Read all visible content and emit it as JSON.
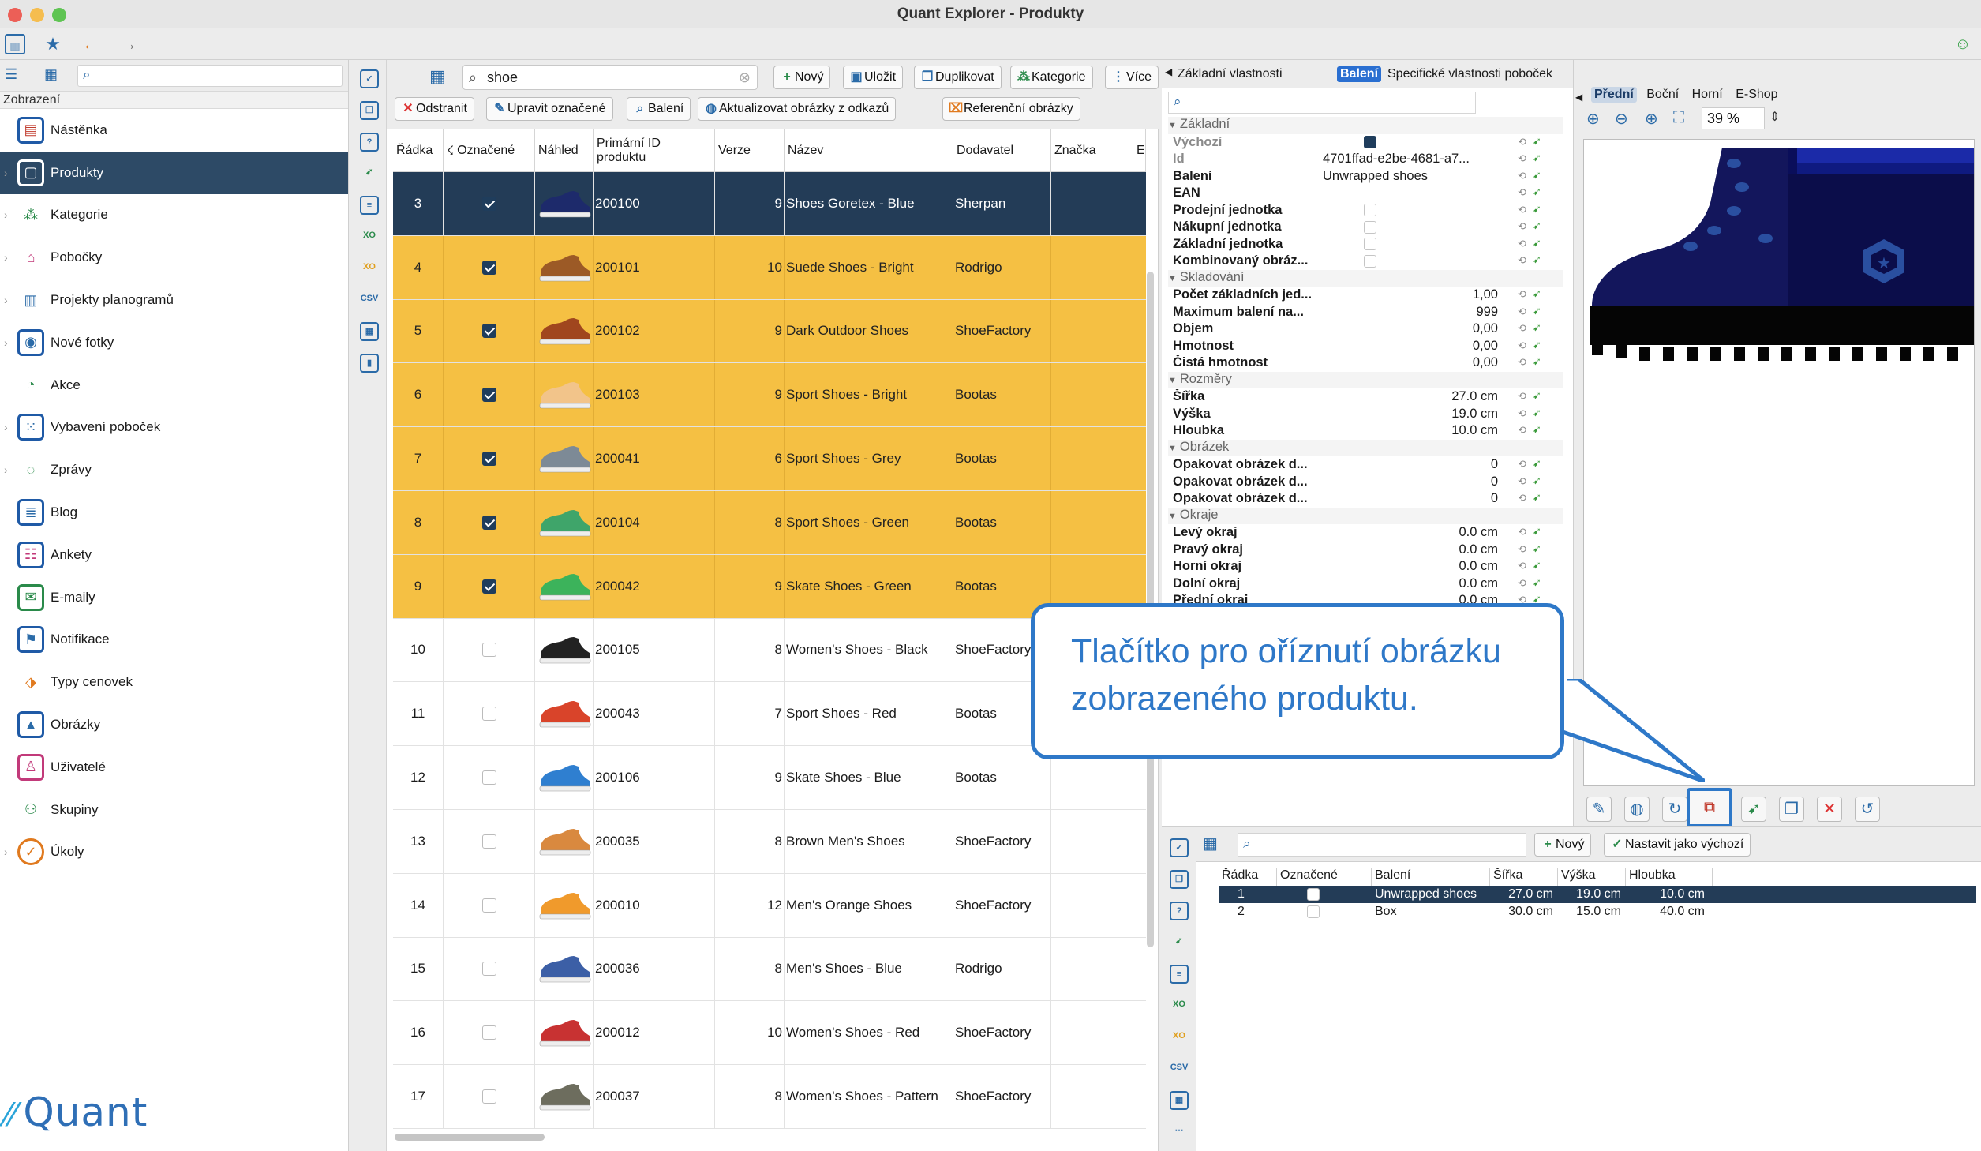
{
  "window": {
    "title": "Quant Explorer - Produkty"
  },
  "nav": {
    "section": "Zobrazení",
    "items": [
      {
        "label": "Nástěnka",
        "icon": "dashboard-icon"
      },
      {
        "label": "Produkty",
        "icon": "product-icon",
        "active": true
      },
      {
        "label": "Kategorie",
        "icon": "category-icon"
      },
      {
        "label": "Pobočky",
        "icon": "store-icon"
      },
      {
        "label": "Projekty planogramů",
        "icon": "planogram-icon"
      },
      {
        "label": "Nové fotky",
        "icon": "camera-icon"
      },
      {
        "label": "Akce",
        "icon": "promo-icon"
      },
      {
        "label": "Vybavení poboček",
        "icon": "equipment-icon"
      },
      {
        "label": "Zprávy",
        "icon": "message-icon"
      },
      {
        "label": "Blog",
        "icon": "blog-icon"
      },
      {
        "label": "Ankety",
        "icon": "survey-icon"
      },
      {
        "label": "E-maily",
        "icon": "email-icon"
      },
      {
        "label": "Notifikace",
        "icon": "notification-icon"
      },
      {
        "label": "Typy cenovek",
        "icon": "price-tag-icon"
      },
      {
        "label": "Obrázky",
        "icon": "image-icon"
      },
      {
        "label": "Uživatelé",
        "icon": "user-icon"
      },
      {
        "label": "Skupiny",
        "icon": "group-icon"
      },
      {
        "label": "Úkoly",
        "icon": "task-icon"
      }
    ],
    "logo": "Quant"
  },
  "products": {
    "search_value": "shoe",
    "toolbar": {
      "new": "Nový",
      "save": "Uložit",
      "duplicate": "Duplikovat",
      "category": "Kategorie",
      "more": "Více",
      "remove": "Odstranit",
      "edit_marked": "Upravit označené",
      "packaging": "Balení",
      "update_images": "Aktualizovat obrázky z odkazů",
      "reference_images": "Referenční obrázky"
    },
    "columns": [
      "Řádka",
      "Označené",
      "Náhled",
      "Primární ID produktu",
      "Verze",
      "Název",
      "Dodavatel",
      "Značka",
      "E"
    ],
    "rows": [
      {
        "row": "3",
        "checked": true,
        "id": "200100",
        "version": "9",
        "name": "Shoes Goretex - Blue",
        "supplier": "Sherpan",
        "state": "selected",
        "color": "#1d2a6b"
      },
      {
        "row": "4",
        "checked": true,
        "id": "200101",
        "version": "10",
        "name": "Suede Shoes - Bright",
        "supplier": "Rodrigo",
        "state": "marked",
        "color": "#9c5a26"
      },
      {
        "row": "5",
        "checked": true,
        "id": "200102",
        "version": "9",
        "name": "Dark Outdoor Shoes",
        "supplier": "ShoeFactory",
        "state": "marked",
        "color": "#a0461e"
      },
      {
        "row": "6",
        "checked": true,
        "id": "200103",
        "version": "9",
        "name": "Sport Shoes - Bright",
        "supplier": "Bootas",
        "state": "marked",
        "color": "#f2c48a"
      },
      {
        "row": "7",
        "checked": true,
        "id": "200041",
        "version": "6",
        "name": "Sport Shoes - Grey",
        "supplier": "Bootas",
        "state": "marked",
        "color": "#7d8a96"
      },
      {
        "row": "8",
        "checked": true,
        "id": "200104",
        "version": "8",
        "name": "Sport Shoes - Green",
        "supplier": "Bootas",
        "state": "marked",
        "color": "#3fa56a"
      },
      {
        "row": "9",
        "checked": true,
        "id": "200042",
        "version": "9",
        "name": "Skate Shoes - Green",
        "supplier": "Bootas",
        "state": "marked",
        "color": "#3cb35b"
      },
      {
        "row": "10",
        "checked": false,
        "id": "200105",
        "version": "8",
        "name": "Women's Shoes - Black",
        "supplier": "ShoeFactory",
        "state": "",
        "color": "#222222"
      },
      {
        "row": "11",
        "checked": false,
        "id": "200043",
        "version": "7",
        "name": "Sport Shoes - Red",
        "supplier": "Bootas",
        "state": "",
        "color": "#d9442a"
      },
      {
        "row": "12",
        "checked": false,
        "id": "200106",
        "version": "9",
        "name": "Skate Shoes - Blue",
        "supplier": "Bootas",
        "state": "",
        "color": "#2f7fd0"
      },
      {
        "row": "13",
        "checked": false,
        "id": "200035",
        "version": "8",
        "name": "Brown Men's Shoes",
        "supplier": "ShoeFactory",
        "state": "",
        "color": "#d9893f"
      },
      {
        "row": "14",
        "checked": false,
        "id": "200010",
        "version": "12",
        "name": "Men's Orange Shoes",
        "supplier": "ShoeFactory",
        "state": "",
        "color": "#f09a2c"
      },
      {
        "row": "15",
        "checked": false,
        "id": "200036",
        "version": "8",
        "name": "Men's Shoes - Blue",
        "supplier": "Rodrigo",
        "state": "",
        "color": "#3c5fa6"
      },
      {
        "row": "16",
        "checked": false,
        "id": "200012",
        "version": "10",
        "name": "Women's Shoes - Red",
        "supplier": "ShoeFactory",
        "state": "",
        "color": "#c83232"
      },
      {
        "row": "17",
        "checked": false,
        "id": "200037",
        "version": "8",
        "name": "Women's Shoes - Pattern",
        "supplier": "ShoeFactory",
        "state": "",
        "color": "#6d6d5e"
      }
    ]
  },
  "properties": {
    "tabs": [
      "Základní vlastnosti",
      "Balení",
      "Specifické vlastnosti poboček"
    ],
    "active_tab": "Balení",
    "rows": [
      {
        "type": "group",
        "label": "Základní"
      },
      {
        "type": "prop",
        "label": "Výchozí",
        "value": "",
        "box": "checked",
        "muted": true
      },
      {
        "type": "prop",
        "label": "Id",
        "value": "4701ffad-e2be-4681-a7...",
        "muted": true
      },
      {
        "type": "prop",
        "label": "Balení",
        "value": "Unwrapped shoes"
      },
      {
        "type": "prop",
        "label": "EAN",
        "value": ""
      },
      {
        "type": "prop",
        "label": "Prodejní jednotka",
        "value": "",
        "box": "empty"
      },
      {
        "type": "prop",
        "label": "Nákupní jednotka",
        "value": "",
        "box": "empty"
      },
      {
        "type": "prop",
        "label": "Základní jednotka",
        "value": "",
        "box": "empty"
      },
      {
        "type": "prop",
        "label": "Kombinovaný obráz...",
        "value": "",
        "box": "empty"
      },
      {
        "type": "group",
        "label": "Skladování"
      },
      {
        "type": "prop",
        "label": "Počet základních jed...",
        "value": "1,00",
        "num": true
      },
      {
        "type": "prop",
        "label": "Maximum balení na...",
        "value": "999",
        "num": true
      },
      {
        "type": "prop",
        "label": "Objem",
        "value": "0,00",
        "num": true
      },
      {
        "type": "prop",
        "label": "Hmotnost",
        "value": "0,00",
        "num": true
      },
      {
        "type": "prop",
        "label": "Čistá hmotnost",
        "value": "0,00",
        "num": true
      },
      {
        "type": "group",
        "label": "Rozměry"
      },
      {
        "type": "prop",
        "label": "Šířka",
        "value": "27.0 cm",
        "num": true
      },
      {
        "type": "prop",
        "label": "Výška",
        "value": "19.0 cm",
        "num": true
      },
      {
        "type": "prop",
        "label": "Hloubka",
        "value": "10.0 cm",
        "num": true
      },
      {
        "type": "group",
        "label": "Obrázek"
      },
      {
        "type": "prop",
        "label": "Opakovat obrázek d...",
        "value": "0",
        "num": true
      },
      {
        "type": "prop",
        "label": "Opakovat obrázek d...",
        "value": "0",
        "num": true
      },
      {
        "type": "prop",
        "label": "Opakovat obrázek d...",
        "value": "0",
        "num": true
      },
      {
        "type": "group",
        "label": "Okraje"
      },
      {
        "type": "prop",
        "label": "Levý okraj",
        "value": "0.0 cm",
        "num": true
      },
      {
        "type": "prop",
        "label": "Pravý okraj",
        "value": "0.0 cm",
        "num": true
      },
      {
        "type": "prop",
        "label": "Horní okraj",
        "value": "0.0 cm",
        "num": true
      },
      {
        "type": "prop",
        "label": "Dolní okraj",
        "value": "0.0 cm",
        "num": true
      },
      {
        "type": "prop",
        "label": "Přední okraj",
        "value": "0.0 cm",
        "num": true
      }
    ]
  },
  "preview": {
    "tabs": [
      "Přední",
      "Boční",
      "Horní",
      "E-Shop"
    ],
    "active_tab": "Přední",
    "zoom": "39 %"
  },
  "packaging": {
    "toolbar": {
      "new": "Nový",
      "set_default": "Nastavit jako výchozí"
    },
    "columns": [
      "Řádka",
      "Označené",
      "Balení",
      "Šířka",
      "Výška",
      "Hloubka"
    ],
    "rows": [
      {
        "row": "1",
        "name": "Unwrapped shoes",
        "width": "27.0 cm",
        "height": "19.0 cm",
        "depth": "10.0 cm",
        "selected": true
      },
      {
        "row": "2",
        "name": "Box",
        "width": "30.0 cm",
        "height": "15.0 cm",
        "depth": "40.0 cm",
        "selected": false
      }
    ]
  },
  "callout": {
    "text": "Tlačítko pro oříznutí obrázku zobrazeného produktu."
  }
}
